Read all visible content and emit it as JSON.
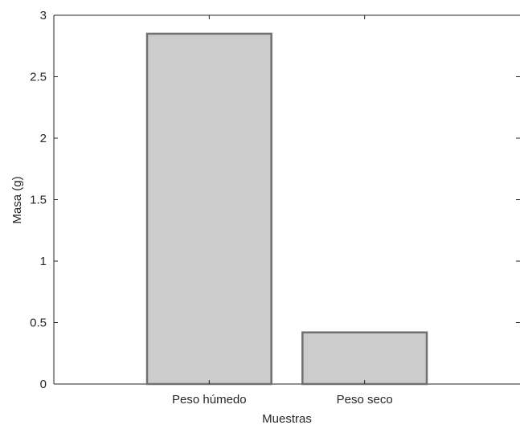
{
  "chart_data": {
    "type": "bar",
    "title": "",
    "xlabel": "Muestras",
    "ylabel": "Masa (g)",
    "categories": [
      "Peso húmedo",
      "Peso seco"
    ],
    "values": [
      2.85,
      0.42
    ],
    "ylim": [
      0,
      3
    ],
    "yticks": [
      0,
      0.5,
      1,
      1.5,
      2,
      2.5,
      3
    ],
    "ytick_labels": [
      "0",
      "0.5",
      "1",
      "1.5",
      "2",
      "2.5",
      "3"
    ],
    "grid": false,
    "bar_fill": "#cccccc",
    "bar_edge": "#707070",
    "axis_color": "#262626"
  }
}
